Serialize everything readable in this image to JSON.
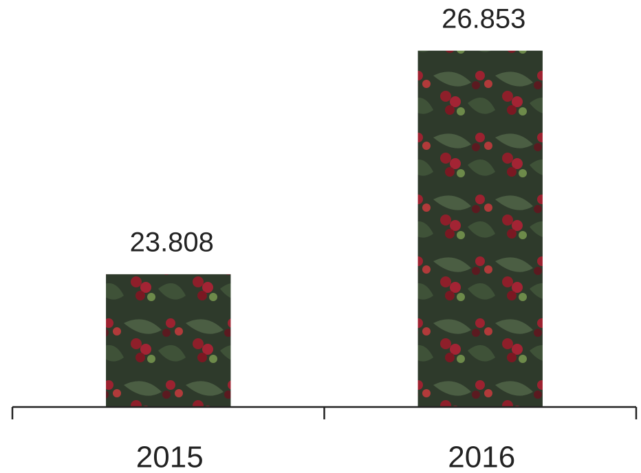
{
  "chart_data": {
    "type": "bar",
    "categories": [
      "2015",
      "2016"
    ],
    "values": [
      23.808,
      26.853
    ],
    "ylim": [
      22,
      27
    ]
  }
}
